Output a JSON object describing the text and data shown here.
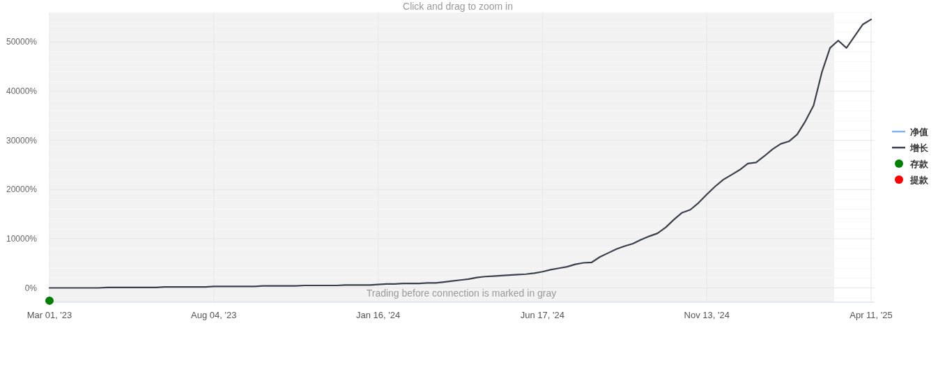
{
  "chart_data": {
    "type": "line",
    "annotations": [
      "Click and drag to zoom in",
      "Trading before connection is marked in gray"
    ],
    "categories": [
      "Mar 01, '23",
      null,
      null,
      null,
      null,
      null,
      null,
      null,
      null,
      null,
      null,
      null,
      null,
      null,
      null,
      null,
      null,
      null,
      null,
      null,
      "Aug 04, '23",
      null,
      null,
      null,
      null,
      null,
      null,
      null,
      null,
      null,
      null,
      null,
      null,
      null,
      null,
      null,
      null,
      null,
      null,
      null,
      "Jan 16, '24",
      null,
      null,
      null,
      null,
      null,
      null,
      null,
      null,
      null,
      null,
      null,
      null,
      null,
      null,
      null,
      null,
      null,
      null,
      null,
      "Jun 17, '24",
      null,
      null,
      null,
      null,
      null,
      null,
      null,
      null,
      null,
      null,
      null,
      null,
      null,
      null,
      null,
      null,
      null,
      null,
      null,
      "Nov 13, '24",
      null,
      null,
      null,
      null,
      null,
      null,
      null,
      null,
      null,
      null,
      null,
      null,
      null,
      null,
      null,
      null,
      null,
      null,
      null,
      "Apr 11, '25"
    ],
    "ylim": [
      -2900,
      56000
    ],
    "yticks": [
      {
        "value": 0,
        "label": "0%"
      },
      {
        "value": 10000,
        "label": "10000%"
      },
      {
        "value": 20000,
        "label": "20000%"
      },
      {
        "value": 30000,
        "label": "30000%"
      },
      {
        "value": 40000,
        "label": "40000%"
      },
      {
        "value": 50000,
        "label": "50000%"
      }
    ],
    "grid": true,
    "legend": "right",
    "series": [
      {
        "name": "净值",
        "type": "line",
        "color": "#7cb5ec",
        "values": [
          null,
          null,
          null,
          null,
          null,
          null,
          null,
          null,
          null,
          null,
          null,
          null,
          null,
          null,
          null,
          null,
          null,
          null,
          null,
          null,
          null,
          null,
          null,
          null,
          null,
          null,
          null,
          null,
          null,
          null,
          null,
          null,
          null,
          null,
          null,
          null,
          null,
          null,
          null,
          null,
          null,
          null,
          null,
          null,
          null,
          null,
          null,
          null,
          null,
          null,
          null,
          null,
          null,
          null,
          null,
          null,
          null,
          null,
          null,
          null,
          null,
          null,
          null,
          null,
          null,
          null,
          null,
          null,
          null,
          null,
          null,
          null,
          null,
          null,
          null,
          null,
          null,
          null,
          null,
          null,
          null,
          null,
          null,
          null,
          null,
          null,
          null,
          null,
          null,
          null,
          null,
          null,
          null,
          null,
          null,
          null,
          null,
          null,
          null,
          null,
          null
        ]
      },
      {
        "name": "增长",
        "type": "line",
        "color": "#3a3f4b",
        "values": [
          0,
          0,
          0,
          0,
          0,
          0,
          0,
          100,
          100,
          100,
          100,
          100,
          100,
          100,
          200,
          200,
          200,
          200,
          200,
          200,
          300,
          300,
          300,
          300,
          300,
          300,
          400,
          400,
          400,
          400,
          400,
          500,
          500,
          500,
          500,
          500,
          600,
          600,
          600,
          600,
          700,
          800,
          800,
          900,
          900,
          900,
          1000,
          1000,
          1200,
          1400,
          1600,
          1800,
          2100,
          2300,
          2400,
          2500,
          2600,
          2700,
          2800,
          3000,
          3300,
          3700,
          4000,
          4300,
          4800,
          5100,
          5200,
          6300,
          7100,
          7900,
          8500,
          9000,
          9800,
          10500,
          11100,
          12300,
          13900,
          15300,
          15900,
          17300,
          19000,
          20600,
          22000,
          23000,
          24000,
          25300,
          25500,
          26800,
          28200,
          29300,
          29800,
          31200,
          33900,
          37100,
          43800,
          48800,
          50300,
          48800,
          51200,
          53600,
          54600
        ]
      },
      {
        "name": "存款",
        "type": "scatter",
        "color": "#008000",
        "marker": "circle",
        "x": [
          "Mar 01, '23"
        ],
        "values": [
          -2600
        ]
      },
      {
        "name": "提款",
        "type": "scatter",
        "color": "#ff0000",
        "marker": "circle",
        "values": [
          null,
          null,
          null,
          null,
          null,
          null,
          null,
          null,
          null,
          null,
          null,
          null,
          null,
          null,
          null,
          null,
          null,
          null,
          null,
          null,
          null,
          null,
          null,
          null,
          null,
          null,
          null,
          null,
          null,
          null,
          null,
          null,
          null,
          null,
          null,
          null,
          null,
          null,
          null,
          null,
          null,
          null,
          null,
          null,
          null,
          null,
          null,
          null,
          null,
          null,
          null,
          null,
          null,
          null,
          null,
          null,
          null,
          null,
          null,
          null,
          null,
          null,
          null,
          null,
          null,
          null,
          null,
          null,
          null,
          null,
          null,
          null,
          null,
          null,
          null,
          null,
          null,
          null,
          null,
          null,
          null,
          null,
          null,
          null,
          null,
          null,
          null,
          null,
          null,
          null,
          null,
          null,
          null,
          null,
          null,
          null,
          null,
          null,
          null,
          null,
          null
        ]
      }
    ]
  }
}
